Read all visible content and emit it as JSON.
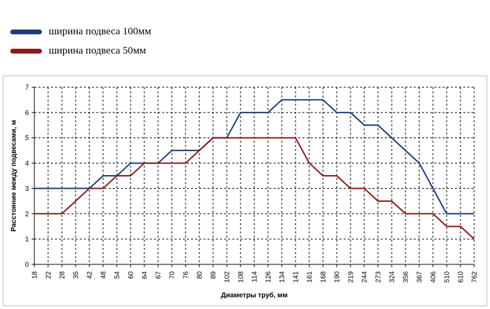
{
  "chart_data": {
    "type": "line",
    "title": "",
    "xlabel": "Диаметры труб, мм",
    "ylabel": "Расстояние между подвесами, м",
    "ylim": [
      0,
      7
    ],
    "yticks": [
      "0",
      "1",
      "2",
      "3",
      "4",
      "5",
      "6",
      "7"
    ],
    "grid": true,
    "legend_position": "top-left",
    "categories": [
      "18",
      "22",
      "28",
      "35",
      "42",
      "48",
      "54",
      "60",
      "64",
      "67",
      "70",
      "76",
      "80",
      "89",
      "102",
      "108",
      "114",
      "126",
      "134",
      "141",
      "161",
      "168",
      "190",
      "219",
      "244",
      "273",
      "324",
      "356",
      "367",
      "406",
      "510",
      "610",
      "762"
    ],
    "series": [
      {
        "name": "ширина подвеса 100мм",
        "color": "#1f3c7a",
        "values": [
          3,
          3,
          3,
          3,
          3,
          3.5,
          3.5,
          4,
          4,
          4,
          4.5,
          4.5,
          4.5,
          5,
          5,
          6,
          6,
          6,
          6.5,
          6.5,
          6.5,
          6.5,
          6,
          6,
          5.5,
          5.5,
          5,
          4.5,
          4,
          3,
          2,
          2,
          2
        ]
      },
      {
        "name": "ширина подвеса 50мм",
        "color": "#8b1a1a",
        "values": [
          2,
          2,
          2,
          2.5,
          3,
          3,
          3.5,
          3.5,
          4,
          4,
          4,
          4,
          4.5,
          5,
          5,
          5,
          5,
          5,
          5,
          5,
          4,
          3.5,
          3.5,
          3,
          3,
          2.5,
          2.5,
          2,
          2,
          2,
          1.5,
          1.5,
          1
        ]
      }
    ]
  }
}
